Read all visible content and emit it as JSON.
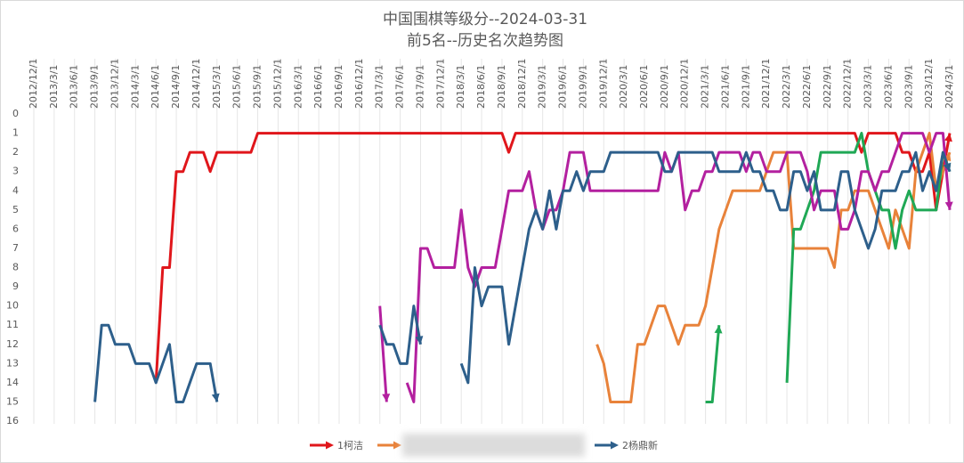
{
  "chart_data": {
    "type": "line",
    "title": "中国围棋等级分--2024-03-31",
    "subtitle": "前5名--历史名次趋势图",
    "categories": [
      "2012/12/1",
      null,
      null,
      "2013/3/1",
      null,
      null,
      "2013/6/1",
      null,
      null,
      "2013/9/1",
      null,
      null,
      "2013/12/1",
      null,
      null,
      "2014/3/1",
      null,
      null,
      "2014/6/1",
      null,
      null,
      "2014/9/1",
      null,
      null,
      "2014/12/1",
      null,
      null,
      "2015/3/1",
      null,
      null,
      "2015/6/1",
      null,
      null,
      "2015/9/1",
      null,
      null,
      "2015/12/1",
      null,
      null,
      "2016/3/1",
      null,
      null,
      "2016/6/1",
      null,
      null,
      "2016/9/1",
      null,
      null,
      "2016/12/1",
      null,
      null,
      "2017/3/1",
      null,
      null,
      "2017/6/1",
      null,
      null,
      "2017/9/1",
      null,
      null,
      "2017/12/1",
      null,
      null,
      "2018/3/1",
      null,
      null,
      "2018/6/1",
      null,
      null,
      "2018/9/1",
      null,
      null,
      "2018/12/1",
      null,
      null,
      "2019/3/1",
      null,
      null,
      "2019/6/1",
      null,
      null,
      "2019/9/1",
      null,
      null,
      "2019/12/1",
      null,
      null,
      "2020/3/1",
      null,
      null,
      "2020/6/1",
      null,
      null,
      "2020/9/1",
      null,
      null,
      "2020/12/1",
      null,
      null,
      "2021/3/1",
      null,
      null,
      "2021/6/1",
      null,
      null,
      "2021/9/1",
      null,
      null,
      "2021/12/1",
      null,
      null,
      "2022/3/1",
      null,
      null,
      "2022/6/1",
      null,
      null,
      "2022/9/1",
      null,
      null,
      "2022/12/1",
      null,
      null,
      "2023/3/1",
      null,
      null,
      "2023/6/1",
      null,
      null,
      "2023/9/1",
      null,
      null,
      "2023/12/1",
      null,
      null,
      "2024/3/1"
    ],
    "series": [
      {
        "name": "1柯洁",
        "color": "#e0161b",
        "values": [
          null,
          null,
          null,
          null,
          null,
          null,
          null,
          null,
          null,
          null,
          null,
          null,
          null,
          null,
          null,
          null,
          null,
          null,
          14,
          8,
          8,
          3,
          3,
          2,
          2,
          2,
          3,
          2,
          2,
          2,
          2,
          2,
          2,
          1,
          1,
          1,
          1,
          1,
          1,
          1,
          1,
          1,
          1,
          1,
          1,
          1,
          1,
          1,
          1,
          1,
          1,
          1,
          1,
          1,
          1,
          1,
          1,
          1,
          1,
          1,
          1,
          1,
          1,
          1,
          1,
          1,
          1,
          1,
          1,
          1,
          2,
          1,
          1,
          1,
          1,
          1,
          1,
          1,
          1,
          1,
          1,
          1,
          1,
          1,
          1,
          1,
          1,
          1,
          1,
          1,
          1,
          1,
          1,
          1,
          1,
          1,
          1,
          1,
          1,
          1,
          1,
          1,
          1,
          1,
          1,
          1,
          1,
          1,
          1,
          1,
          1,
          1,
          1,
          1,
          1,
          1,
          1,
          1,
          1,
          1,
          1,
          1,
          2,
          1,
          1,
          1,
          1,
          1,
          2,
          2,
          3,
          3,
          2,
          5,
          3,
          1
        ]
      },
      {
        "color": "#e8823a",
        "values": [
          null,
          null,
          null,
          null,
          null,
          null,
          null,
          null,
          null,
          null,
          null,
          null,
          null,
          null,
          null,
          null,
          null,
          null,
          null,
          null,
          null,
          null,
          null,
          null,
          null,
          null,
          null,
          null,
          null,
          null,
          null,
          null,
          null,
          null,
          null,
          null,
          null,
          null,
          null,
          null,
          null,
          null,
          null,
          null,
          null,
          null,
          null,
          null,
          null,
          null,
          null,
          null,
          null,
          null,
          null,
          null,
          null,
          null,
          null,
          null,
          null,
          null,
          null,
          null,
          null,
          null,
          null,
          null,
          null,
          null,
          null,
          null,
          null,
          null,
          null,
          null,
          null,
          null,
          null,
          null,
          null,
          null,
          null,
          12,
          13,
          15,
          15,
          15,
          15,
          12,
          12,
          11,
          10,
          10,
          11,
          12,
          11,
          11,
          11,
          10,
          8,
          6,
          5,
          4,
          4,
          4,
          4,
          4,
          3,
          2,
          2,
          2,
          7,
          7,
          7,
          7,
          7,
          7,
          8,
          5,
          5,
          4,
          4,
          4,
          5,
          6,
          7,
          5,
          6,
          7,
          3,
          2,
          1,
          4,
          3,
          2
        ]
      },
      {
        "color": "#1fa855",
        "values": [
          null,
          null,
          null,
          null,
          null,
          null,
          null,
          null,
          null,
          null,
          null,
          null,
          null,
          null,
          null,
          null,
          null,
          null,
          null,
          null,
          null,
          null,
          null,
          null,
          null,
          null,
          null,
          null,
          null,
          null,
          null,
          null,
          null,
          null,
          null,
          null,
          null,
          null,
          null,
          null,
          null,
          null,
          null,
          null,
          null,
          null,
          null,
          null,
          null,
          null,
          null,
          null,
          null,
          null,
          null,
          null,
          null,
          null,
          null,
          null,
          null,
          null,
          null,
          null,
          null,
          null,
          null,
          null,
          null,
          null,
          null,
          null,
          null,
          null,
          null,
          null,
          null,
          null,
          null,
          null,
          null,
          null,
          null,
          null,
          null,
          null,
          null,
          null,
          null,
          null,
          null,
          null,
          null,
          null,
          null,
          null,
          null,
          null,
          null,
          15,
          15,
          11,
          null,
          null,
          null,
          null,
          null,
          null,
          null,
          null,
          null,
          14,
          6,
          6,
          5,
          4,
          2,
          2,
          2,
          2,
          2,
          2,
          1,
          3,
          4,
          5,
          5,
          7,
          5,
          4,
          5,
          5,
          5,
          5,
          2,
          3
        ]
      },
      {
        "color": "#b3209f",
        "values": [
          null,
          null,
          null,
          null,
          null,
          null,
          null,
          null,
          null,
          null,
          null,
          null,
          null,
          null,
          null,
          null,
          null,
          null,
          null,
          null,
          null,
          null,
          null,
          null,
          null,
          null,
          null,
          null,
          null,
          null,
          null,
          null,
          null,
          null,
          null,
          null,
          null,
          null,
          null,
          null,
          null,
          null,
          null,
          null,
          null,
          null,
          null,
          null,
          null,
          null,
          null,
          10,
          15,
          null,
          null,
          14,
          15,
          7,
          7,
          8,
          8,
          8,
          8,
          5,
          8,
          9,
          8,
          8,
          8,
          6,
          4,
          4,
          4,
          3,
          5,
          6,
          5,
          5,
          4,
          2,
          2,
          2,
          4,
          4,
          4,
          4,
          4,
          4,
          4,
          4,
          4,
          4,
          4,
          2,
          3,
          2,
          5,
          4,
          4,
          3,
          3,
          2,
          2,
          2,
          2,
          3,
          2,
          2,
          3,
          3,
          3,
          2,
          2,
          2,
          3,
          5,
          4,
          4,
          4,
          6,
          6,
          5,
          3,
          3,
          4,
          3,
          3,
          2,
          1,
          1,
          1,
          1,
          2,
          1,
          1,
          5
        ]
      },
      {
        "name": "2杨鼎新",
        "color": "#2d5f8b",
        "values": [
          null,
          null,
          null,
          null,
          null,
          null,
          null,
          null,
          null,
          15,
          11,
          11,
          12,
          12,
          12,
          13,
          13,
          13,
          14,
          13,
          12,
          15,
          15,
          14,
          13,
          13,
          13,
          15,
          null,
          null,
          null,
          null,
          null,
          null,
          null,
          null,
          null,
          null,
          null,
          null,
          null,
          null,
          null,
          null,
          null,
          null,
          null,
          null,
          null,
          null,
          null,
          11,
          12,
          12,
          13,
          13,
          10,
          12,
          null,
          null,
          null,
          null,
          null,
          13,
          14,
          8,
          10,
          9,
          9,
          9,
          12,
          10,
          8,
          6,
          5,
          6,
          4,
          6,
          4,
          4,
          3,
          4,
          3,
          3,
          3,
          2,
          2,
          2,
          2,
          2,
          2,
          2,
          2,
          3,
          3,
          2,
          2,
          2,
          2,
          2,
          2,
          3,
          3,
          3,
          3,
          2,
          3,
          3,
          4,
          4,
          5,
          5,
          3,
          3,
          4,
          3,
          5,
          5,
          5,
          3,
          3,
          5,
          6,
          7,
          6,
          4,
          4,
          4,
          3,
          3,
          2,
          4,
          3,
          4,
          2,
          3
        ]
      }
    ],
    "ylim": [
      16,
      0
    ],
    "yticks": [
      0,
      1,
      2,
      3,
      4,
      5,
      6,
      7,
      8,
      9,
      10,
      11,
      12,
      13,
      14,
      15,
      16
    ],
    "grid": "x",
    "legend": "bottom"
  }
}
